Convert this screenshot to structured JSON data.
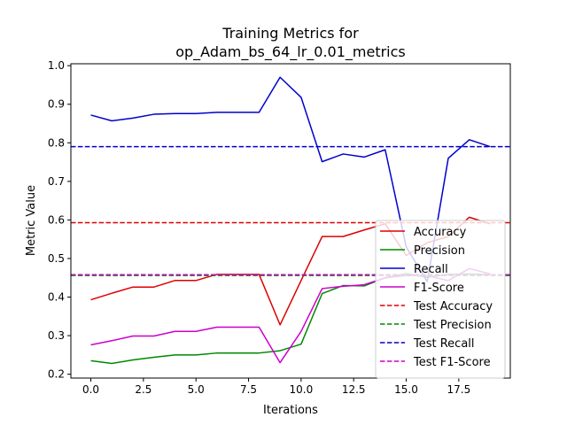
{
  "chart_data": {
    "type": "line",
    "title_line1": "Training Metrics for",
    "title_line2": "op_Adam_bs_64_lr_0.01_metrics",
    "xlabel": "Iterations",
    "ylabel": "Metric Value",
    "xlim": [
      -0.95,
      19.95
    ],
    "ylim": [
      0.19,
      1.005
    ],
    "xticks": [
      0.0,
      2.5,
      5.0,
      7.5,
      10.0,
      12.5,
      15.0,
      17.5
    ],
    "xtick_labels": [
      "0.0",
      "2.5",
      "5.0",
      "7.5",
      "10.0",
      "12.5",
      "15.0",
      "17.5"
    ],
    "yticks": [
      0.2,
      0.3,
      0.4,
      0.5,
      0.6,
      0.7,
      0.8,
      0.9,
      1.0
    ],
    "ytick_labels": [
      "0.2",
      "0.3",
      "0.4",
      "0.5",
      "0.6",
      "0.7",
      "0.8",
      "0.9",
      "1.0"
    ],
    "grid": false,
    "legend_position": "lower-right",
    "x": [
      0,
      1,
      2,
      3,
      4,
      5,
      6,
      7,
      8,
      9,
      10,
      11,
      12,
      13,
      14,
      15,
      16,
      17,
      18,
      19
    ],
    "series": [
      {
        "name": "Accuracy",
        "color": "#dd0000",
        "style": "solid",
        "values": [
          0.393,
          0.41,
          0.426,
          0.426,
          0.443,
          0.443,
          0.459,
          0.459,
          0.459,
          0.328,
          0.443,
          0.557,
          0.557,
          0.574,
          0.59,
          0.508,
          0.541,
          0.557,
          0.607,
          0.59
        ]
      },
      {
        "name": "Precision",
        "color": "#008800",
        "style": "solid",
        "values": [
          0.235,
          0.228,
          0.237,
          0.244,
          0.25,
          0.25,
          0.255,
          0.255,
          0.255,
          0.261,
          0.278,
          0.409,
          0.43,
          0.429,
          0.45,
          0.461,
          0.451,
          0.459,
          0.46,
          0.458
        ]
      },
      {
        "name": "Recall",
        "color": "#0000cc",
        "style": "solid",
        "values": [
          0.872,
          0.857,
          0.864,
          0.874,
          0.876,
          0.876,
          0.879,
          0.879,
          0.879,
          0.97,
          0.918,
          0.751,
          0.771,
          0.763,
          0.782,
          0.53,
          0.44,
          0.76,
          0.808,
          0.79
        ]
      },
      {
        "name": "F1-Score",
        "color": "#cc00cc",
        "style": "solid",
        "values": [
          0.276,
          0.287,
          0.299,
          0.299,
          0.311,
          0.311,
          0.322,
          0.322,
          0.322,
          0.23,
          0.311,
          0.422,
          0.428,
          0.432,
          0.45,
          0.456,
          0.455,
          0.443,
          0.474,
          0.46
        ]
      },
      {
        "name": "Test Accuracy",
        "color": "#dd0000",
        "style": "dashed",
        "constant": 0.593
      },
      {
        "name": "Test Precision",
        "color": "#008800",
        "style": "dashed",
        "constant": 0.456
      },
      {
        "name": "Test Recall",
        "color": "#0000cc",
        "style": "dashed",
        "constant": 0.79
      },
      {
        "name": "Test F1-Score",
        "color": "#cc00cc",
        "style": "dashed",
        "constant": 0.458
      }
    ]
  }
}
